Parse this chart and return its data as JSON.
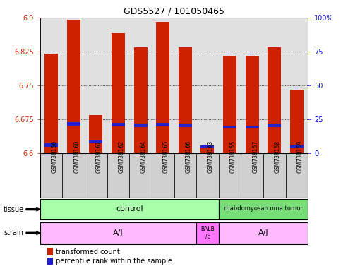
{
  "title": "GDS5527 / 101050465",
  "samples": [
    "GSM738156",
    "GSM738160",
    "GSM738161",
    "GSM738162",
    "GSM738164",
    "GSM738165",
    "GSM738166",
    "GSM738163",
    "GSM738155",
    "GSM738157",
    "GSM738158",
    "GSM738159"
  ],
  "bar_values": [
    6.82,
    6.895,
    6.685,
    6.865,
    6.835,
    6.89,
    6.835,
    6.615,
    6.815,
    6.815,
    6.835,
    6.74
  ],
  "percentile_values": [
    6.618,
    6.665,
    6.625,
    6.663,
    6.662,
    6.663,
    6.662,
    6.614,
    6.658,
    6.658,
    6.662,
    6.615
  ],
  "ymin": 6.6,
  "ymax": 6.9,
  "yticks": [
    6.6,
    6.675,
    6.75,
    6.825,
    6.9
  ],
  "ytick_labels": [
    "6.6",
    "6.675",
    "6.75",
    "6.825",
    "6.9"
  ],
  "right_yticks": [
    0,
    25,
    50,
    75,
    100
  ],
  "right_ytick_labels": [
    "0",
    "25",
    "50",
    "75",
    "100%"
  ],
  "bar_color": "#cc2200",
  "percentile_color": "#2222cc",
  "bar_width": 0.6,
  "bg_color": "#e0e0e0",
  "sample_box_color": "#d0d0d0",
  "control_color": "#aaffaa",
  "rhabdo_color": "#77dd77",
  "strain_aj_color": "#ffbbff",
  "strain_balb_color": "#ff77ff",
  "left_tick_color": "#cc2200",
  "right_tick_color": "#0000cc"
}
